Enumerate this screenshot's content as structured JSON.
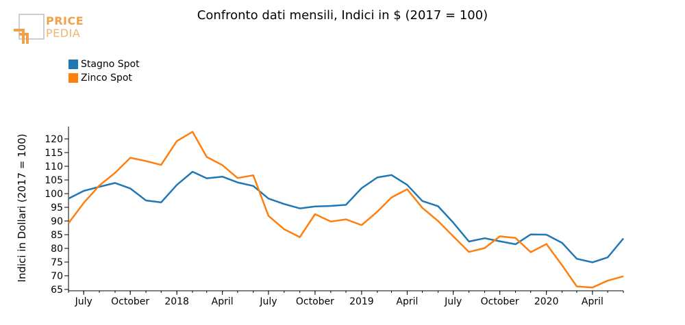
{
  "logo": {
    "line1": "PRICE",
    "line2": "PEDIA"
  },
  "chart_data": {
    "type": "line",
    "title": "Confronto dati mensili, Indici in $ (2017 = 100)",
    "ylabel": "Indici in Dollari (2017 = 100)",
    "xlabel": "",
    "ylim": [
      64.5,
      124.5
    ],
    "yticks": [
      65,
      70,
      75,
      80,
      85,
      90,
      95,
      100,
      105,
      110,
      115,
      120
    ],
    "xlim": [
      "2017-06-01",
      "2020-06-01"
    ],
    "xticks": [
      {
        "date": "2017-07-01",
        "label": "July"
      },
      {
        "date": "2017-10-01",
        "label": "October"
      },
      {
        "date": "2018-01-01",
        "label": "2018"
      },
      {
        "date": "2018-04-01",
        "label": "April"
      },
      {
        "date": "2018-07-01",
        "label": "July"
      },
      {
        "date": "2018-10-01",
        "label": "October"
      },
      {
        "date": "2019-01-01",
        "label": "2019"
      },
      {
        "date": "2019-04-01",
        "label": "April"
      },
      {
        "date": "2019-07-01",
        "label": "July"
      },
      {
        "date": "2019-10-01",
        "label": "October"
      },
      {
        "date": "2020-01-01",
        "label": "2020"
      },
      {
        "date": "2020-04-01",
        "label": "April"
      }
    ],
    "x": [
      "2017-06-01",
      "2017-07-01",
      "2017-08-01",
      "2017-09-01",
      "2017-10-01",
      "2017-11-01",
      "2017-12-01",
      "2018-01-01",
      "2018-02-01",
      "2018-03-01",
      "2018-04-01",
      "2018-05-01",
      "2018-06-01",
      "2018-07-01",
      "2018-08-01",
      "2018-09-01",
      "2018-10-01",
      "2018-11-01",
      "2018-12-01",
      "2019-01-01",
      "2019-02-01",
      "2019-03-01",
      "2019-04-01",
      "2019-05-01",
      "2019-06-01",
      "2019-07-01",
      "2019-08-01",
      "2019-09-01",
      "2019-10-01",
      "2019-11-01",
      "2019-12-01",
      "2020-01-01",
      "2020-02-01",
      "2020-03-01",
      "2020-04-01",
      "2020-05-01",
      "2020-06-01"
    ],
    "series": [
      {
        "name": "Stagno Spot",
        "color": "#1f77b4",
        "values": [
          98.2,
          101.0,
          102.5,
          103.9,
          101.9,
          97.5,
          96.8,
          103.2,
          108.0,
          105.6,
          106.2,
          104.1,
          102.8,
          98.2,
          96.2,
          94.6,
          95.3,
          95.5,
          95.9,
          102.0,
          105.9,
          106.8,
          103.2,
          97.3,
          95.4,
          89.4,
          82.5,
          83.7,
          82.6,
          81.5,
          85.1,
          85.0,
          82.0,
          76.2,
          74.9,
          76.7,
          83.6
        ]
      },
      {
        "name": "Zinco Spot",
        "color": "#ff7f0e",
        "values": [
          89.2,
          96.6,
          103.0,
          107.6,
          113.1,
          111.9,
          110.5,
          119.2,
          122.6,
          113.4,
          110.4,
          105.7,
          106.7,
          91.9,
          87.0,
          84.1,
          92.5,
          89.8,
          90.6,
          88.5,
          93.4,
          98.6,
          101.6,
          94.8,
          90.0,
          84.4,
          78.7,
          80.1,
          84.4,
          83.8,
          78.6,
          81.6,
          73.8,
          66.1,
          65.7,
          68.2,
          69.8
        ]
      }
    ],
    "legend_position": "top-left",
    "grid": false
  }
}
